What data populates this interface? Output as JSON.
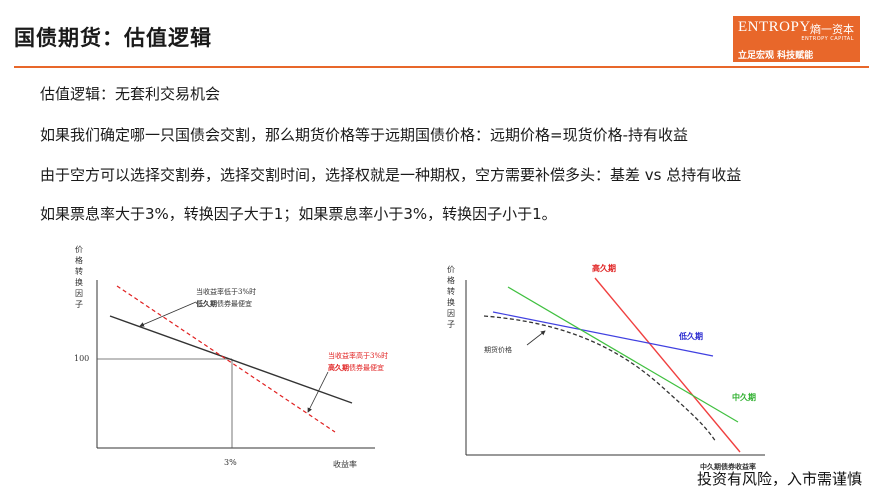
{
  "page": {
    "title": "国债期货：估值逻辑",
    "logo": {
      "wordmark": "ENTROPY",
      "chinese": "熵一资本",
      "sub": "ENTROPY CAPITAL",
      "slogan": "立足宏观 科技赋能"
    },
    "paragraphs": [
      "估值逻辑：无套利交易机会",
      "如果我们确定哪一只国债会交割，那么期货价格等于远期国债价格：远期价格=现货价格-持有收益",
      "由于空方可以选择交割券，选择交割时间，选择权就是一种期权，空方需要补偿多头：基差 vs 总持有收益",
      "如果票息率大于3%，转换因子大于1；如果票息率小于3%，转换因子小于1。"
    ],
    "footer": "投资有风险，入市需谨慎"
  },
  "chart_left": {
    "ylabel": "价格转换因子",
    "xlabel": "收益率",
    "y_tick": "100",
    "x_tick": "3%",
    "ann_low_line1": "当收益率低于3%时",
    "ann_low_bold": "低久期",
    "ann_low_rest": "债券最便宜",
    "ann_high_line1": "当收益率高于3%时",
    "ann_high_bold": "高久期",
    "ann_high_rest": "债券最便宜",
    "colors": {
      "low": "#333333",
      "high": "#e02020",
      "guide": "#555555"
    }
  },
  "chart_right": {
    "ylabel": "价格转换因子",
    "xlabel": "中久期债券收益率",
    "labels": {
      "high": "高久期",
      "low": "低久期",
      "mid": "中久期",
      "futures": "期货价格"
    },
    "colors": {
      "high": "#f04040",
      "low": "#4040e0",
      "mid": "#40c040",
      "futures": "#333333"
    }
  }
}
